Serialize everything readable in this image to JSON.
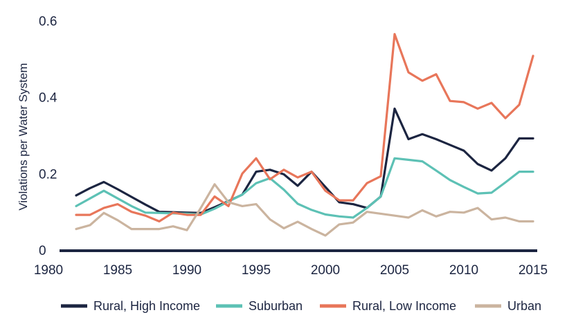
{
  "chart_data": {
    "type": "line",
    "title": "",
    "xlabel": "",
    "ylabel": "Violations per Water System",
    "xlim": [
      1980,
      2015
    ],
    "ylim": [
      0,
      0.6
    ],
    "x_ticks": [
      1980,
      1985,
      1990,
      1995,
      2000,
      2005,
      2010,
      2015
    ],
    "x_tick_labels": [
      "1980",
      "1985",
      "1990",
      "1995",
      "2000",
      "2005",
      "2010",
      "2015"
    ],
    "y_ticks": [
      0,
      0.2,
      0.4,
      0.6
    ],
    "y_tick_labels": [
      "0",
      "0.2",
      "0.4",
      "0.6"
    ],
    "grid": false,
    "legend_position": "bottom",
    "x": [
      1982,
      1983,
      1984,
      1985,
      1986,
      1987,
      1988,
      1989,
      1990,
      1991,
      1992,
      1993,
      1994,
      1995,
      1996,
      1997,
      1998,
      1999,
      2000,
      2001,
      2002,
      2003,
      2004,
      2005,
      2006,
      2007,
      2008,
      2009,
      2010,
      2011,
      2012,
      2013,
      2014,
      2015
    ],
    "series": [
      {
        "name": "Rural, High Income",
        "color": "#1c2541",
        "values": [
          0.143,
          0.162,
          0.178,
          0.159,
          0.139,
          0.119,
          0.1,
          0.099,
          0.098,
          0.097,
          0.112,
          0.128,
          0.145,
          0.205,
          0.21,
          0.198,
          0.168,
          0.205,
          0.165,
          0.125,
          0.12,
          0.11,
          0.14,
          0.37,
          0.29,
          0.303,
          0.29,
          0.275,
          0.26,
          0.225,
          0.208,
          0.24,
          0.292,
          0.292
        ]
      },
      {
        "name": "Suburban",
        "color": "#5dc1b5",
        "values": [
          0.115,
          0.135,
          0.155,
          0.135,
          0.115,
          0.098,
          0.097,
          0.096,
          0.095,
          0.093,
          0.108,
          0.127,
          0.145,
          0.175,
          0.188,
          0.158,
          0.121,
          0.105,
          0.093,
          0.088,
          0.085,
          0.11,
          0.14,
          0.24,
          0.236,
          0.232,
          0.208,
          0.183,
          0.165,
          0.148,
          0.15,
          0.177,
          0.205,
          0.205
        ]
      },
      {
        "name": "Rural, Low Income",
        "color": "#e8765a",
        "values": [
          0.092,
          0.092,
          0.11,
          0.12,
          0.1,
          0.09,
          0.075,
          0.098,
          0.092,
          0.092,
          0.14,
          0.115,
          0.2,
          0.24,
          0.185,
          0.21,
          0.19,
          0.205,
          0.155,
          0.13,
          0.13,
          0.175,
          0.193,
          0.565,
          0.465,
          0.443,
          0.46,
          0.39,
          0.387,
          0.37,
          0.385,
          0.345,
          0.38,
          0.508
        ]
      },
      {
        "name": "Urban",
        "color": "#cbb49f",
        "values": [
          0.055,
          0.065,
          0.097,
          0.078,
          0.055,
          0.055,
          0.055,
          0.062,
          0.052,
          0.11,
          0.172,
          0.125,
          0.115,
          0.12,
          0.08,
          0.057,
          0.074,
          0.055,
          0.038,
          0.067,
          0.072,
          0.1,
          0.095,
          0.09,
          0.085,
          0.104,
          0.088,
          0.1,
          0.098,
          0.11,
          0.08,
          0.085,
          0.075,
          0.075
        ]
      }
    ]
  }
}
